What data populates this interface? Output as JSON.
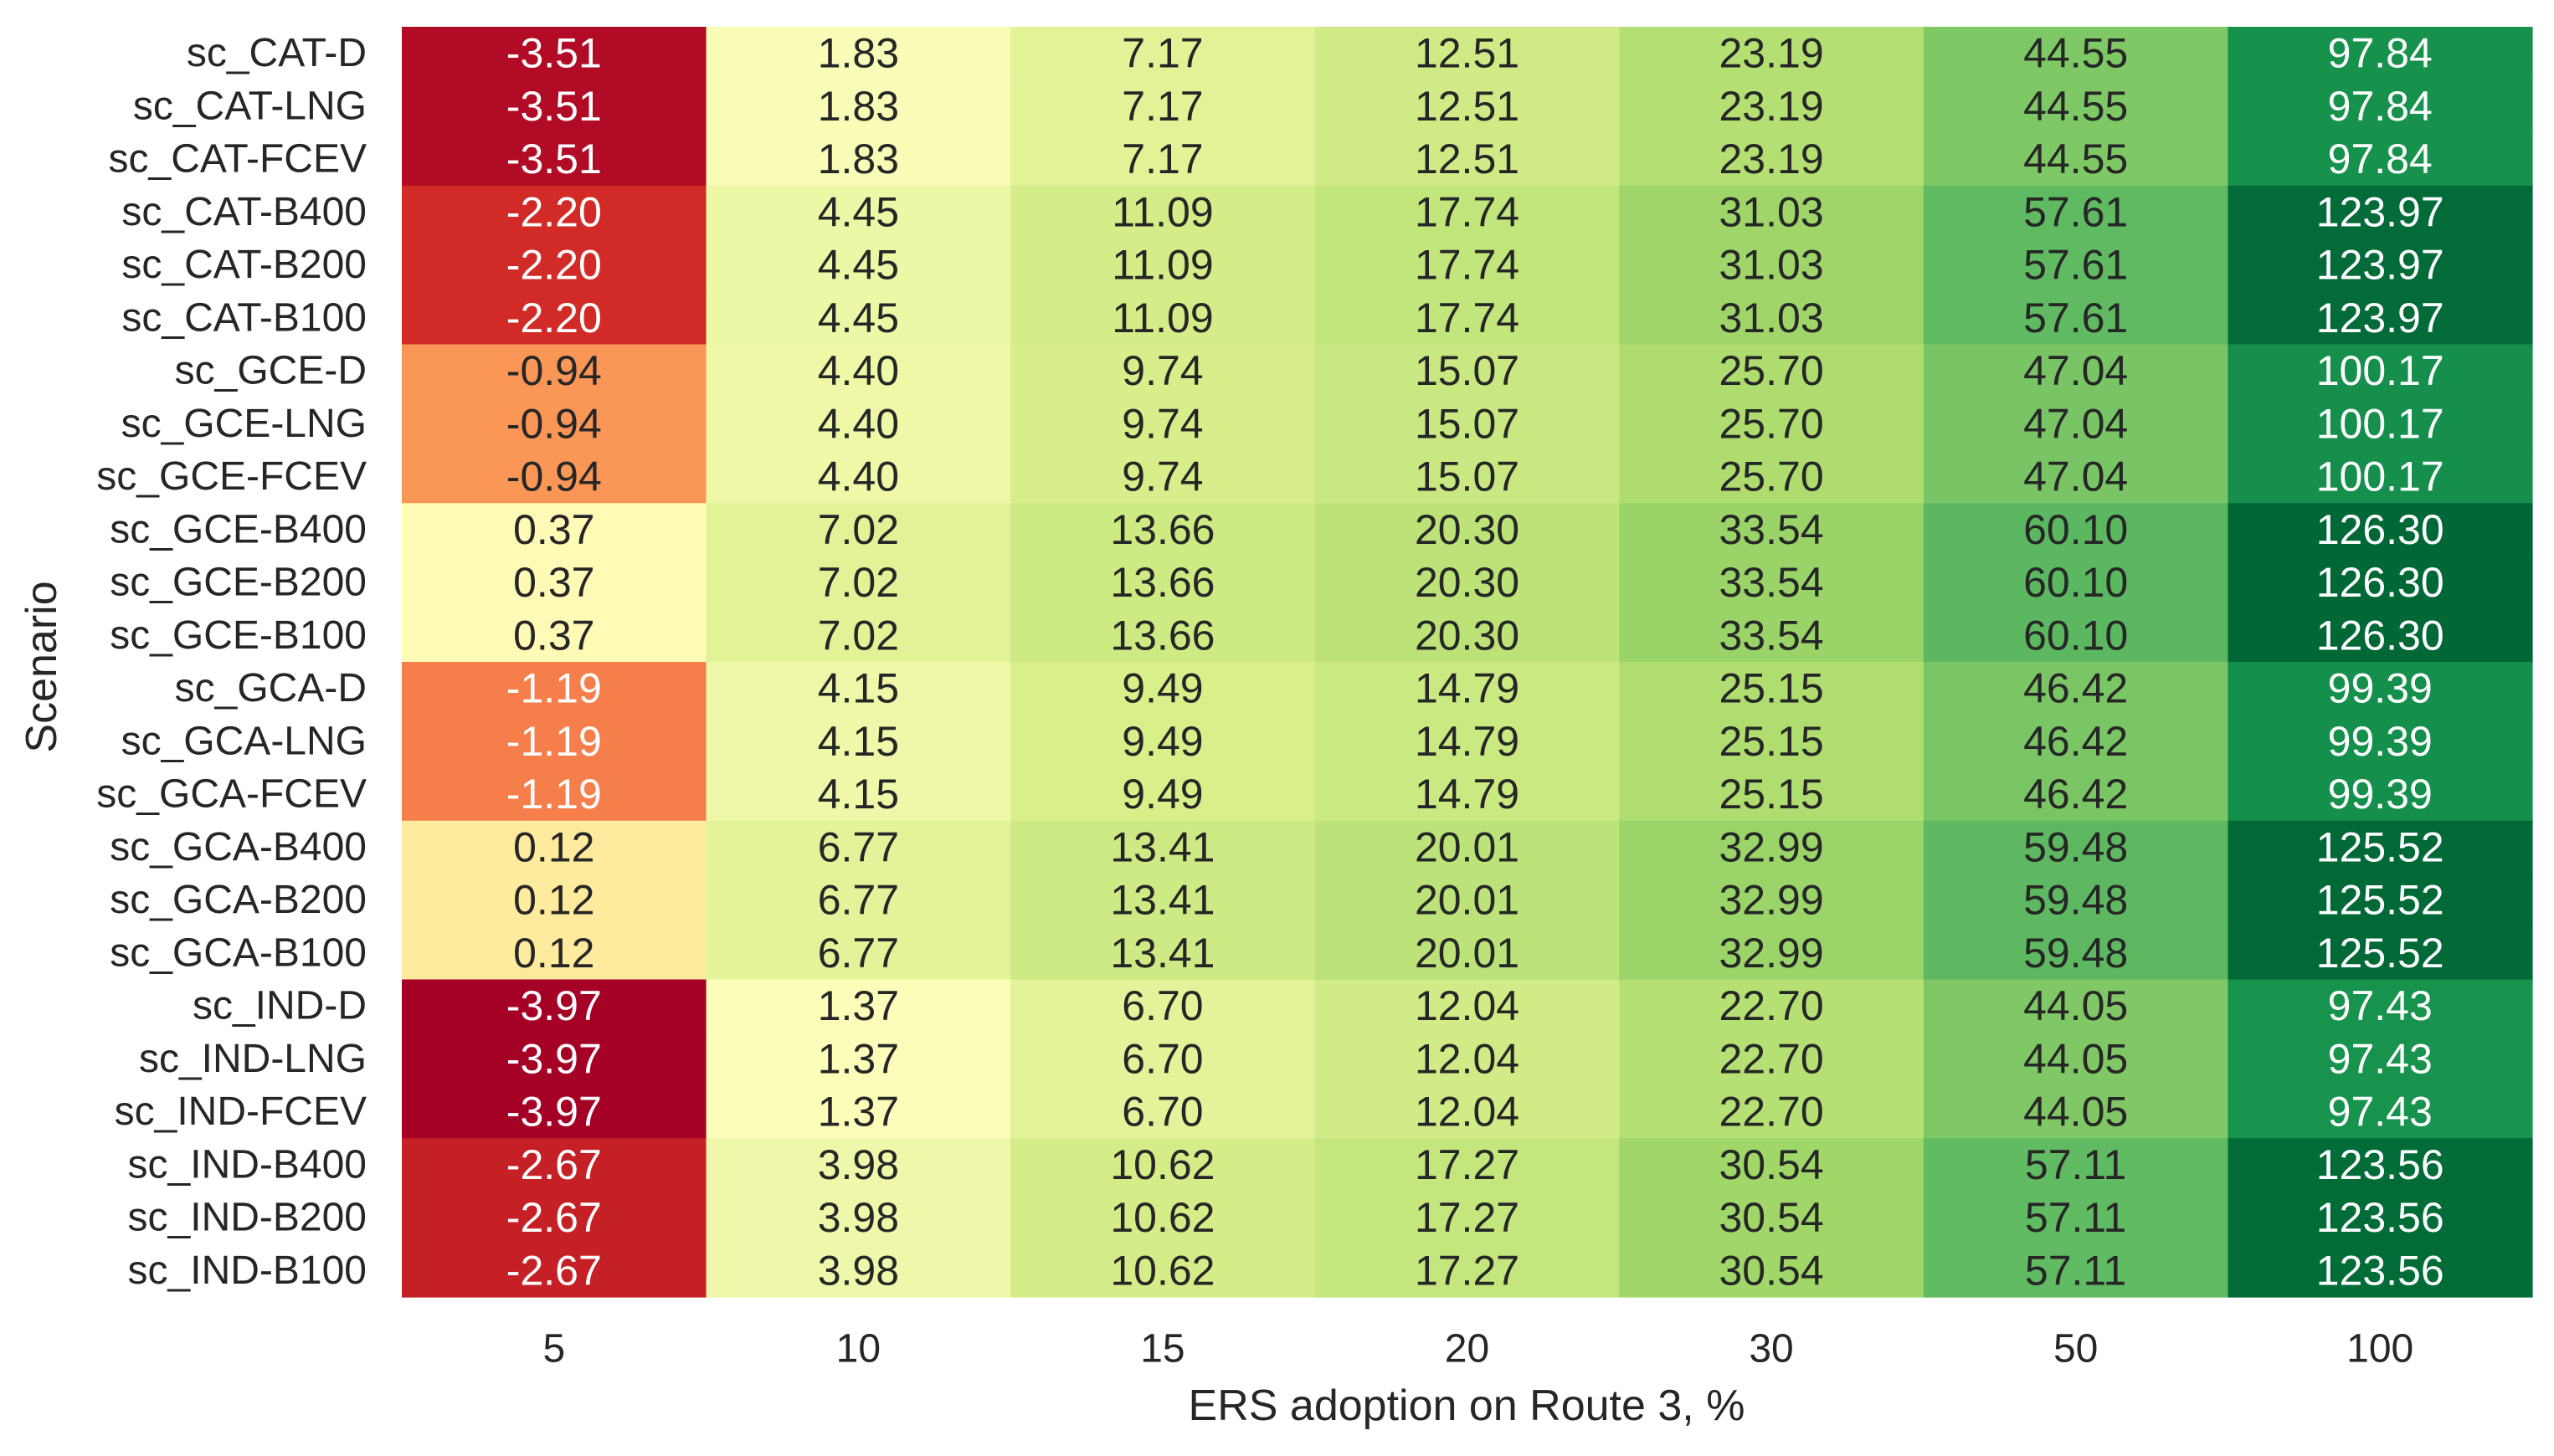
{
  "chart_data": {
    "type": "heatmap",
    "xlabel": "ERS adoption on Route 3, %",
    "ylabel": "Scenario",
    "colormap": "RdYlGn",
    "value_range": [
      -3.97,
      126.3
    ],
    "x_categories": [
      "5",
      "10",
      "15",
      "20",
      "30",
      "50",
      "100"
    ],
    "y_categories": [
      "sc_CAT-D",
      "sc_CAT-LNG",
      "sc_CAT-FCEV",
      "sc_CAT-B400",
      "sc_CAT-B200",
      "sc_CAT-B100",
      "sc_GCE-D",
      "sc_GCE-LNG",
      "sc_GCE-FCEV",
      "sc_GCE-B400",
      "sc_GCE-B200",
      "sc_GCE-B100",
      "sc_GCA-D",
      "sc_GCA-LNG",
      "sc_GCA-FCEV",
      "sc_GCA-B400",
      "sc_GCA-B200",
      "sc_GCA-B100",
      "sc_IND-D",
      "sc_IND-LNG",
      "sc_IND-FCEV",
      "sc_IND-B400",
      "sc_IND-B200",
      "sc_IND-B100"
    ],
    "values": [
      [
        "-3.51",
        "1.83",
        "7.17",
        "12.51",
        "23.19",
        "44.55",
        "97.84"
      ],
      [
        "-3.51",
        "1.83",
        "7.17",
        "12.51",
        "23.19",
        "44.55",
        "97.84"
      ],
      [
        "-3.51",
        "1.83",
        "7.17",
        "12.51",
        "23.19",
        "44.55",
        "97.84"
      ],
      [
        "-2.20",
        "4.45",
        "11.09",
        "17.74",
        "31.03",
        "57.61",
        "123.97"
      ],
      [
        "-2.20",
        "4.45",
        "11.09",
        "17.74",
        "31.03",
        "57.61",
        "123.97"
      ],
      [
        "-2.20",
        "4.45",
        "11.09",
        "17.74",
        "31.03",
        "57.61",
        "123.97"
      ],
      [
        "-0.94",
        "4.40",
        "9.74",
        "15.07",
        "25.70",
        "47.04",
        "100.17"
      ],
      [
        "-0.94",
        "4.40",
        "9.74",
        "15.07",
        "25.70",
        "47.04",
        "100.17"
      ],
      [
        "-0.94",
        "4.40",
        "9.74",
        "15.07",
        "25.70",
        "47.04",
        "100.17"
      ],
      [
        "0.37",
        "7.02",
        "13.66",
        "20.30",
        "33.54",
        "60.10",
        "126.30"
      ],
      [
        "0.37",
        "7.02",
        "13.66",
        "20.30",
        "33.54",
        "60.10",
        "126.30"
      ],
      [
        "0.37",
        "7.02",
        "13.66",
        "20.30",
        "33.54",
        "60.10",
        "126.30"
      ],
      [
        "-1.19",
        "4.15",
        "9.49",
        "14.79",
        "25.15",
        "46.42",
        "99.39"
      ],
      [
        "-1.19",
        "4.15",
        "9.49",
        "14.79",
        "25.15",
        "46.42",
        "99.39"
      ],
      [
        "-1.19",
        "4.15",
        "9.49",
        "14.79",
        "25.15",
        "46.42",
        "99.39"
      ],
      [
        "0.12",
        "6.77",
        "13.41",
        "20.01",
        "32.99",
        "59.48",
        "125.52"
      ],
      [
        "0.12",
        "6.77",
        "13.41",
        "20.01",
        "32.99",
        "59.48",
        "125.52"
      ],
      [
        "0.12",
        "6.77",
        "13.41",
        "20.01",
        "32.99",
        "59.48",
        "125.52"
      ],
      [
        "-3.97",
        "1.37",
        "6.70",
        "12.04",
        "22.70",
        "44.05",
        "97.43"
      ],
      [
        "-3.97",
        "1.37",
        "6.70",
        "12.04",
        "22.70",
        "44.05",
        "97.43"
      ],
      [
        "-3.97",
        "1.37",
        "6.70",
        "12.04",
        "22.70",
        "44.05",
        "97.43"
      ],
      [
        "-2.67",
        "3.98",
        "10.62",
        "17.27",
        "30.54",
        "57.11",
        "123.56"
      ],
      [
        "-2.67",
        "3.98",
        "10.62",
        "17.27",
        "30.54",
        "57.11",
        "123.56"
      ],
      [
        "-2.67",
        "3.98",
        "10.62",
        "17.27",
        "30.54",
        "57.11",
        "123.56"
      ]
    ],
    "colors": {
      "col5": {
        "-3.97": "#a50026",
        "-3.51": "#c21c27",
        "-2.67": "#e8543b",
        "-2.20": "#f47d49",
        "-1.19": "#fcb86a",
        "-0.94": "#fdc677",
        "0.12": "#fefdbc",
        "0.37": "#fefebd"
      },
      "col10": [
        "#fafdb8",
        "#f5fbb2",
        "#f3faaf",
        "#f0f9aa"
      ],
      "col15": [
        "#f3fab0",
        "#ecf7a6",
        "#eaf69f",
        "#e4f39a"
      ],
      "col20": [
        "#eaf6a1",
        "#e3f399",
        "#dff195",
        "#d6ed8b"
      ],
      "col30": [
        "#daef8f",
        "#d3ec87",
        "#cdea82",
        "#c3e67a"
      ],
      "col50": [
        "#afdd70",
        "#a7d96b",
        "#9fd569",
        "#8acc62"
      ],
      "col100": [
        "#2a9f52",
        "#219a50",
        "#09733f",
        "#016a38",
        "#006837"
      ],
      "text_dark": "#262626",
      "text_light": "#ffffff"
    }
  }
}
